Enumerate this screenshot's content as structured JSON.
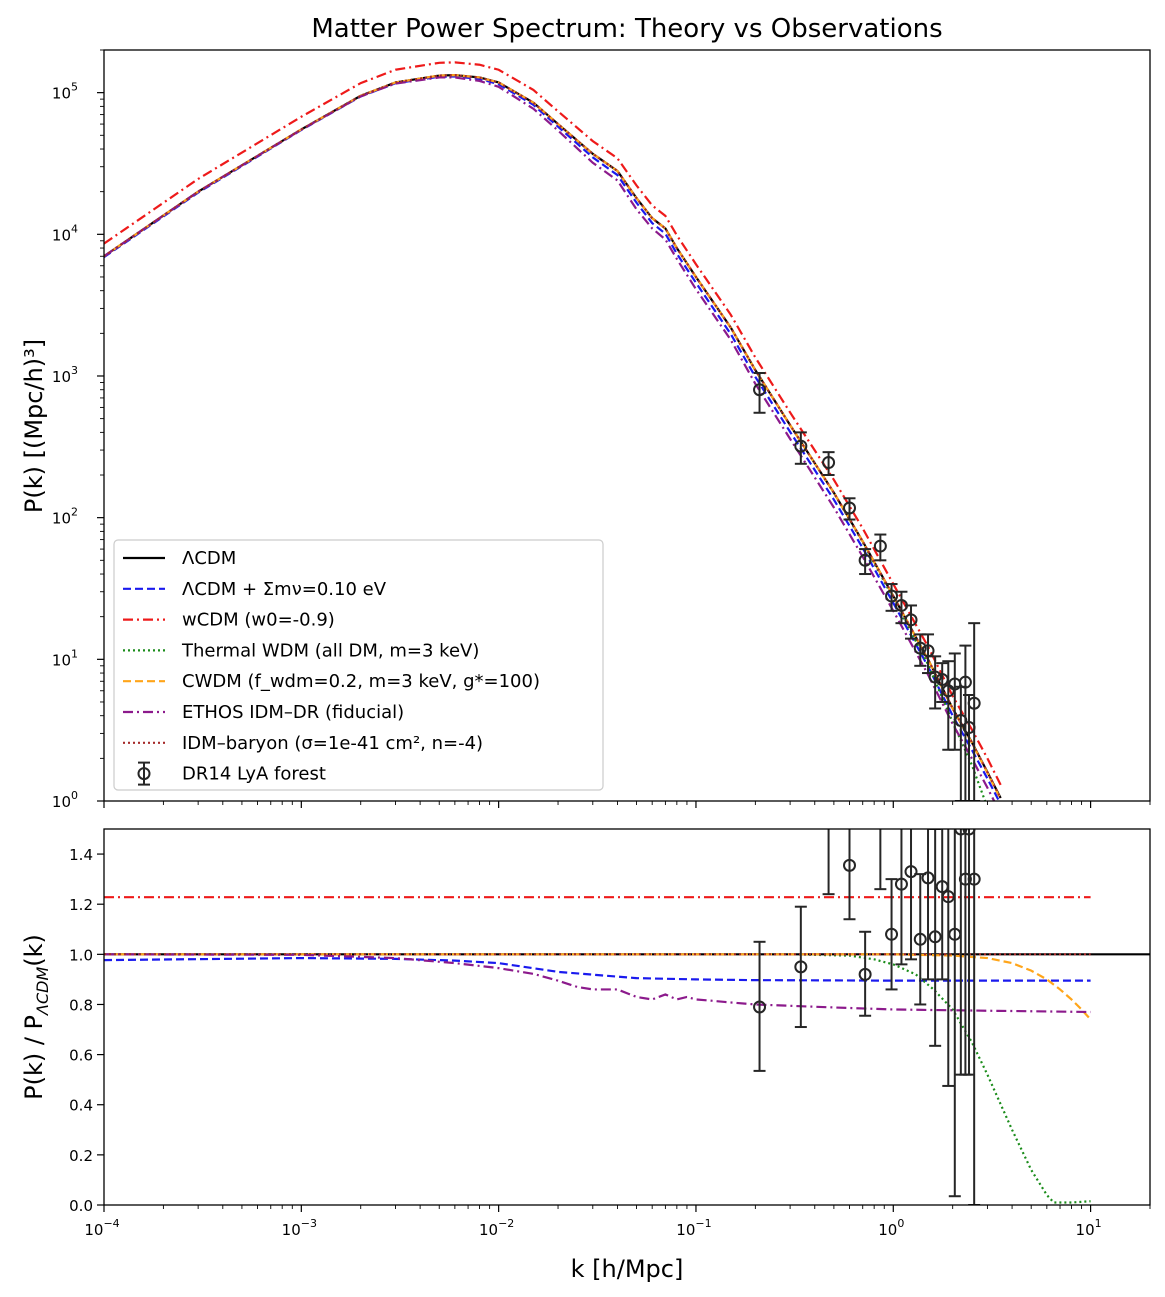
{
  "chart_data": [
    {
      "type": "line",
      "title": "Matter Power Spectrum: Theory vs Observations",
      "xlabel": "",
      "ylabel": "P(k) [(Mpc/h)³]",
      "xscale": "log",
      "yscale": "log",
      "xlim": [
        0.0001,
        20
      ],
      "ylim": [
        1,
        200000
      ],
      "xticks": [
        "10^-4",
        "10^-3",
        "10^-2",
        "10^-1",
        "10^0",
        "10^1"
      ],
      "yticks": [
        "10^0",
        "10^1",
        "10^2",
        "10^3",
        "10^4",
        "10^5"
      ],
      "legend_position": "lower-left",
      "x": [
        0.0001,
        0.0003,
        0.001,
        0.002,
        0.003,
        0.005,
        0.006,
        0.008,
        0.01,
        0.015,
        0.02,
        0.03,
        0.04,
        0.05,
        0.06,
        0.07,
        0.08,
        0.1,
        0.15,
        0.2,
        0.3,
        0.5,
        0.7,
        1.0,
        1.5,
        2.0,
        2.5,
        3.0,
        3.5
      ],
      "series": [
        {
          "name": "ΛCDM",
          "color": "#000000",
          "dash": "solid",
          "y": [
            7000,
            20000,
            55000,
            95000,
            118000,
            132000,
            133000,
            128000,
            118000,
            85000,
            60000,
            37000,
            28000,
            18000,
            13000,
            11000,
            8000,
            5000,
            2200,
            1100,
            450,
            150,
            68,
            28,
            10,
            4.5,
            2.6,
            1.6,
            1.05
          ]
        },
        {
          "name": "ΛCDM + Σmν=0.10 eV",
          "color": "#1a1aee",
          "dash": "dashed",
          "y": [
            6900,
            19700,
            54500,
            94000,
            116500,
            129500,
            130000,
            125000,
            114800,
            82000,
            57500,
            34900,
            26200,
            16700,
            12000,
            10100,
            7300,
            4550,
            1980,
            985,
            403,
            134,
            61,
            25,
            8.9,
            4.0,
            2.3,
            1.44,
            0.95
          ]
        },
        {
          "name": "wCDM (w0=-0.9)",
          "color": "#ee1a1a",
          "dash": "dashdot",
          "y": [
            8600,
            24600,
            67600,
            116800,
            145100,
            162400,
            163600,
            157400,
            145100,
            104500,
            73800,
            45500,
            34400,
            22100,
            16000,
            13500,
            9840,
            6150,
            2710,
            1350,
            553,
            185,
            84,
            34,
            12.3,
            5.5,
            3.2,
            2.0,
            1.3
          ]
        },
        {
          "name": "Thermal WDM (all DM, m=3 keV)",
          "color": "#1a8c1a",
          "dash": "dotted",
          "y": [
            7000,
            20000,
            55000,
            95000,
            118000,
            132000,
            133000,
            128000,
            118000,
            85000,
            60000,
            37000,
            28000,
            18000,
            13000,
            11000,
            8000,
            5000,
            2200,
            1100,
            450,
            149,
            67,
            27,
            9.2,
            3.6,
            1.8,
            0.9,
            0.5
          ]
        },
        {
          "name": "CWDM (f_wdm=0.2, m=3 keV, g*=100)",
          "color": "#ffa51a",
          "dash": "dashed",
          "y": [
            7000,
            20000,
            55000,
            95000,
            118000,
            132000,
            133000,
            128000,
            118000,
            85000,
            60000,
            37000,
            28000,
            18000,
            13000,
            11000,
            8000,
            5000,
            2200,
            1100,
            450,
            150,
            68,
            28,
            10,
            4.48,
            2.58,
            1.58,
            1.03
          ]
        },
        {
          "name": "ETHOS IDM–DR (fiducial)",
          "color": "#8c1a8c",
          "dash": "dashdot",
          "y": [
            7000,
            20000,
            54800,
            94200,
            116000,
            128000,
            128000,
            121000,
            110000,
            77000,
            54000,
            32000,
            24000,
            15000,
            11000,
            9200,
            6700,
            4100,
            1800,
            880,
            360,
            118,
            53,
            22,
            7.8,
            3.5,
            2.0,
            1.24,
            0.81
          ]
        },
        {
          "name": "IDM–baryon (σ=1e-41 cm², n=-4)",
          "color": "#a52a2a",
          "dash": "dotted",
          "y": [
            7000,
            20000,
            55000,
            95000,
            118000,
            132000,
            133000,
            128000,
            118000,
            85000,
            60000,
            37000,
            28000,
            18000,
            13000,
            11000,
            8000,
            5000,
            2200,
            1100,
            450,
            150,
            68,
            28,
            10,
            4.5,
            2.6,
            1.6,
            1.05
          ]
        }
      ],
      "observations": {
        "name": "DR14 LyA forest",
        "color": "#262626",
        "points": [
          {
            "x": 0.21,
            "y": 800,
            "lo": 550,
            "hi": 1050
          },
          {
            "x": 0.34,
            "y": 320,
            "lo": 240,
            "hi": 400
          },
          {
            "x": 0.47,
            "y": 245,
            "lo": 200,
            "hi": 290
          },
          {
            "x": 0.6,
            "y": 117,
            "lo": 97,
            "hi": 137
          },
          {
            "x": 0.72,
            "y": 50,
            "lo": 40,
            "hi": 60
          },
          {
            "x": 0.86,
            "y": 63,
            "lo": 50,
            "hi": 76
          },
          {
            "x": 0.98,
            "y": 28,
            "lo": 22,
            "hi": 34
          },
          {
            "x": 1.1,
            "y": 24,
            "lo": 18,
            "hi": 30
          },
          {
            "x": 1.23,
            "y": 19,
            "lo": 14,
            "hi": 24
          },
          {
            "x": 1.37,
            "y": 12,
            "lo": 9,
            "hi": 15
          },
          {
            "x": 1.5,
            "y": 11.5,
            "lo": 8,
            "hi": 15
          },
          {
            "x": 1.63,
            "y": 7.5,
            "lo": 4.5,
            "hi": 10.5
          },
          {
            "x": 1.77,
            "y": 7.2,
            "lo": 5,
            "hi": 9.4
          },
          {
            "x": 1.9,
            "y": 6,
            "lo": 2.3,
            "hi": 9.7
          },
          {
            "x": 2.05,
            "y": 6.7,
            "lo": 2.3,
            "hi": 11
          },
          {
            "x": 2.2,
            "y": 3.7,
            "lo": 1.0,
            "hi": 6.4
          },
          {
            "x": 2.32,
            "y": 6.9,
            "lo": 1.0,
            "hi": 12.5
          },
          {
            "x": 2.42,
            "y": 3.3,
            "lo": 1.0,
            "hi": 5.6
          },
          {
            "x": 2.57,
            "y": 4.9,
            "lo": 1.0,
            "hi": 18
          }
        ]
      }
    },
    {
      "type": "line",
      "title": "",
      "xlabel": "k [h/Mpc]",
      "ylabel_prefix": "P(k) / P",
      "ylabel_sub": "ΛCDM",
      "ylabel_suffix": "(k)",
      "xscale": "log",
      "yscale": "linear",
      "xlim": [
        0.0001,
        20
      ],
      "ylim": [
        0,
        1.5
      ],
      "xticks": [
        "10^-4",
        "10^-3",
        "10^-2",
        "10^-1",
        "10^0",
        "10^1"
      ],
      "yticks": [
        "0.0",
        "0.2",
        "0.4",
        "0.6",
        "0.8",
        "1.0",
        "1.2",
        "1.4"
      ],
      "series": [
        {
          "name": "ΛCDM",
          "color": "#000000",
          "dash": "solid",
          "x": [
            0.0001,
            20
          ],
          "y": [
            1.0,
            1.0
          ]
        },
        {
          "name": "ΛCDM + Σmν=0.10 eV",
          "color": "#1a1aee",
          "dash": "dashed",
          "x": [
            0.0001,
            0.001,
            0.003,
            0.006,
            0.01,
            0.02,
            0.05,
            0.1,
            0.2,
            0.5,
            1,
            3,
            10
          ],
          "y": [
            0.977,
            0.985,
            0.982,
            0.975,
            0.965,
            0.93,
            0.905,
            0.9,
            0.897,
            0.896,
            0.895,
            0.895,
            0.895
          ]
        },
        {
          "name": "wCDM (w0=-0.9)",
          "color": "#ee1a1a",
          "dash": "dashdot",
          "x": [
            0.0001,
            10
          ],
          "y": [
            1.228,
            1.228
          ]
        },
        {
          "name": "Thermal WDM (all DM, m=3 keV)",
          "color": "#1a8c1a",
          "dash": "dotted",
          "x": [
            0.0001,
            0.3,
            0.6,
            0.8,
            1.0,
            1.3,
            1.6,
            2.0,
            2.5,
            3.0,
            4.0,
            5.0,
            6.0,
            6.5,
            8.0,
            10.0
          ],
          "y": [
            1.0,
            1.0,
            0.995,
            0.98,
            0.96,
            0.92,
            0.86,
            0.78,
            0.65,
            0.52,
            0.3,
            0.14,
            0.04,
            0.01,
            0.01,
            0.015
          ]
        },
        {
          "name": "CWDM (f_wdm=0.2, m=3 keV, g*=100)",
          "color": "#ffa51a",
          "dash": "dashed",
          "x": [
            0.0001,
            1.0,
            2.0,
            3.0,
            4.0,
            5.0,
            6.0,
            7.0,
            8.0,
            9.0,
            10.0
          ],
          "y": [
            1.0,
            1.0,
            0.995,
            0.985,
            0.965,
            0.935,
            0.9,
            0.86,
            0.82,
            0.78,
            0.74
          ]
        },
        {
          "name": "ETHOS IDM–DR (fiducial)",
          "color": "#8c1a8c",
          "dash": "dashdot",
          "x": [
            0.0001,
            0.001,
            0.003,
            0.006,
            0.01,
            0.015,
            0.02,
            0.025,
            0.03,
            0.04,
            0.05,
            0.06,
            0.07,
            0.08,
            0.09,
            0.1,
            0.12,
            0.14,
            0.2,
            0.5,
            1.0,
            3.0,
            10.0
          ],
          "y": [
            1.0,
            0.998,
            0.985,
            0.965,
            0.945,
            0.922,
            0.895,
            0.87,
            0.86,
            0.86,
            0.83,
            0.82,
            0.84,
            0.82,
            0.83,
            0.82,
            0.815,
            0.81,
            0.8,
            0.788,
            0.78,
            0.775,
            0.77
          ]
        },
        {
          "name": "IDM–baryon (σ=1e-41 cm², n=-4)",
          "color": "#a52a2a",
          "dash": "dotted",
          "x": [
            0.0001,
            10
          ],
          "y": [
            1.0,
            1.0
          ]
        }
      ],
      "observations": {
        "name": "DR14 LyA forest",
        "color": "#262626",
        "points": [
          {
            "x": 0.21,
            "y": 0.79,
            "lo": 0.535,
            "hi": 1.05
          },
          {
            "x": 0.34,
            "y": 0.95,
            "lo": 0.71,
            "hi": 1.19
          },
          {
            "x": 0.47,
            "y": 1.53,
            "lo": 1.24,
            "hi": 1.82
          },
          {
            "x": 0.6,
            "y": 1.355,
            "lo": 1.14,
            "hi": 1.57
          },
          {
            "x": 0.72,
            "y": 0.92,
            "lo": 0.755,
            "hi": 1.09
          },
          {
            "x": 0.86,
            "y": 1.58,
            "lo": 1.26,
            "hi": 1.9
          },
          {
            "x": 0.98,
            "y": 1.08,
            "lo": 0.86,
            "hi": 1.3
          },
          {
            "x": 1.1,
            "y": 1.28,
            "lo": 0.96,
            "hi": 1.6
          },
          {
            "x": 1.23,
            "y": 1.33,
            "lo": 0.98,
            "hi": 1.68
          },
          {
            "x": 1.37,
            "y": 1.06,
            "lo": 0.8,
            "hi": 1.32
          },
          {
            "x": 1.5,
            "y": 1.305,
            "lo": 0.9,
            "hi": 1.7
          },
          {
            "x": 1.63,
            "y": 1.07,
            "lo": 0.635,
            "hi": 1.5
          },
          {
            "x": 1.77,
            "y": 1.27,
            "lo": 0.9,
            "hi": 1.64
          },
          {
            "x": 1.9,
            "y": 1.23,
            "lo": 0.475,
            "hi": 1.985
          },
          {
            "x": 2.05,
            "y": 1.08,
            "lo": 0.035,
            "hi": 2.1
          },
          {
            "x": 2.2,
            "y": 1.5,
            "lo": 0.52,
            "hi": 2.5
          },
          {
            "x": 2.32,
            "y": 1.3,
            "lo": 0.52,
            "hi": 2.5
          },
          {
            "x": 2.42,
            "y": 1.5,
            "lo": 0.52,
            "hi": 2.5
          },
          {
            "x": 2.57,
            "y": 1.3,
            "lo": 0.0,
            "hi": 3.5
          }
        ]
      }
    }
  ]
}
